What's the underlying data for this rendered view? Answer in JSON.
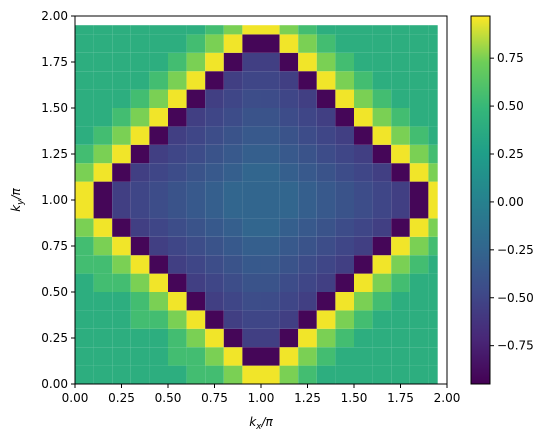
{
  "chart_data": {
    "type": "heatmap",
    "title": "",
    "xlabel": "k_x/π",
    "ylabel": "k_y/π",
    "xlim": [
      0,
      2
    ],
    "ylim": [
      0,
      2
    ],
    "x_ticks": [
      "0.00",
      "0.25",
      "0.50",
      "0.75",
      "1.00",
      "1.25",
      "1.50",
      "1.75",
      "2.00"
    ],
    "y_ticks": [
      "0.00",
      "0.25",
      "0.50",
      "0.75",
      "1.00",
      "1.25",
      "1.50",
      "1.75",
      "2.00"
    ],
    "grid": {
      "nx": 20,
      "ny": 20,
      "dx": 0.1,
      "dy": 0.1,
      "x_extent": [
        0,
        1.95
      ],
      "y_extent": [
        0,
        1.95
      ]
    },
    "colormap": "viridis",
    "colorbar": {
      "range": [
        -0.95,
        0.97
      ],
      "ticks": [
        "0.75",
        "0.50",
        "0.25",
        "0.00",
        "−0.25",
        "−0.50",
        "−0.75"
      ],
      "tick_values": [
        0.75,
        0.5,
        0.25,
        0.0,
        -0.25,
        -0.5,
        -0.75
      ]
    },
    "values_note_model": "cosine band pattern centered at (1,1); minimum near diamond ring |kx-1|+|ky-1|~0.9"
  }
}
